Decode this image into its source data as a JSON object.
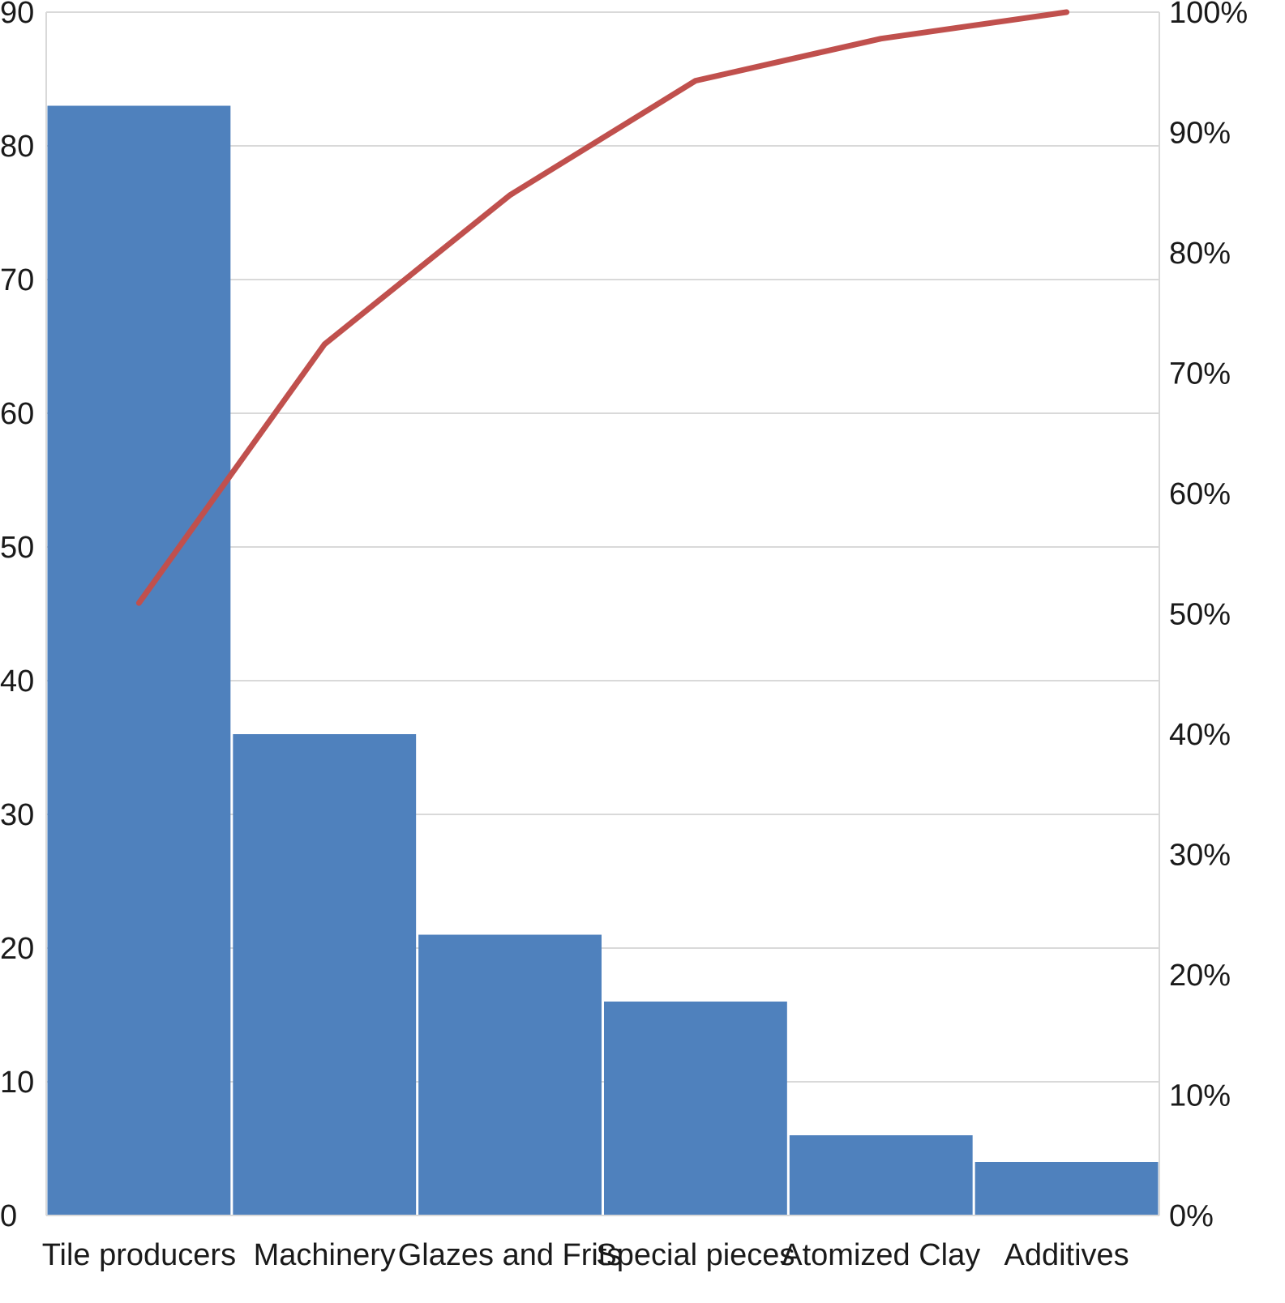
{
  "chart_data": {
    "type": "bar",
    "title": "",
    "xlabel": "",
    "ylabel": "",
    "categories": [
      "Tile producers",
      "Machinery",
      "Glazes and Frits",
      "Special pieces",
      "Atomized Clay",
      "Additives"
    ],
    "series": [
      {
        "type": "bar",
        "axis": "left",
        "values": [
          83,
          36,
          21,
          16,
          6,
          4
        ]
      },
      {
        "type": "line",
        "axis": "right",
        "values": [
          50.9,
          72.4,
          84.8,
          94.3,
          97.8,
          100
        ]
      }
    ],
    "ylim": [
      0,
      90
    ],
    "y2lim": [
      0,
      100
    ],
    "yticks": [
      "0",
      "10",
      "20",
      "30",
      "40",
      "50",
      "60",
      "70",
      "80",
      "90"
    ],
    "y2ticks": [
      "0%",
      "10%",
      "20%",
      "30%",
      "40%",
      "50%",
      "60%",
      "70%",
      "80%",
      "90%",
      "100%"
    ],
    "grid": true,
    "legend": "none",
    "colors": {
      "bar": "#4f81bd",
      "line": "#c0504d",
      "grid": "#d9d9d9"
    }
  }
}
